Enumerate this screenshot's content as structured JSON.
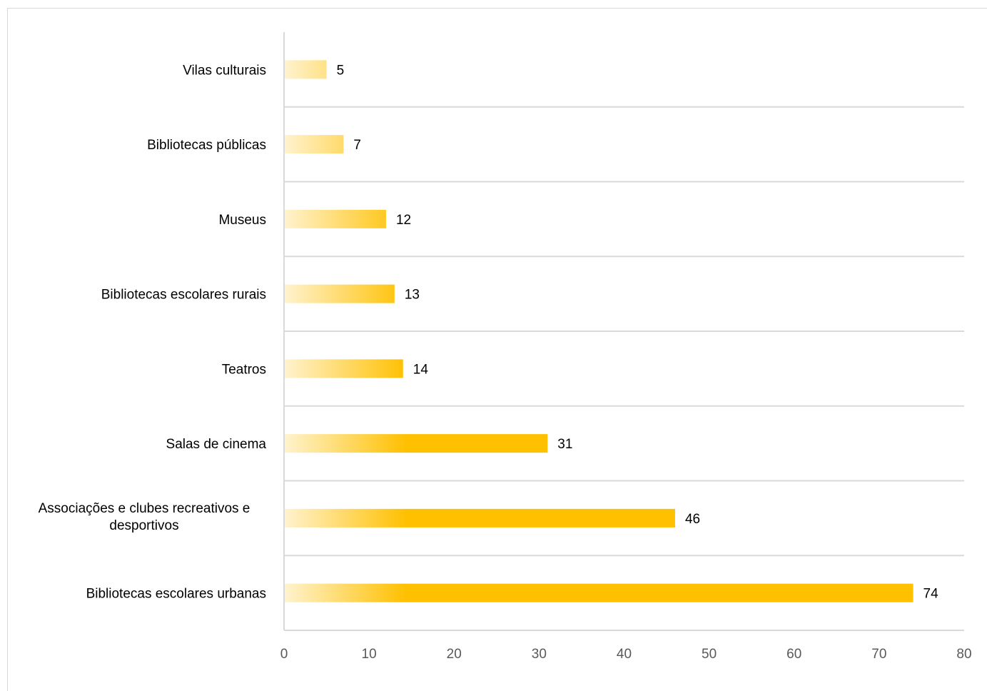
{
  "chart_data": {
    "type": "bar",
    "orientation": "horizontal",
    "categories": [
      "Vilas culturais",
      "Bibliotecas públicas",
      "Museus",
      "Bibliotecas escolares rurais",
      "Teatros",
      "Salas de cinema",
      "Associações e clubes recreativos e desportivos",
      "Bibliotecas escolares urbanas"
    ],
    "values": [
      5,
      7,
      12,
      13,
      14,
      31,
      46,
      74
    ],
    "x_ticks": [
      "0",
      "10",
      "20",
      "30",
      "40",
      "50",
      "60",
      "70",
      "80"
    ],
    "xlim": [
      0,
      80
    ],
    "title": "",
    "xlabel": "",
    "ylabel": "",
    "grid": "horizontal category separators",
    "legend": "none",
    "bar_color": "#FFC000",
    "bar_color_light": "#FFF3D0"
  }
}
